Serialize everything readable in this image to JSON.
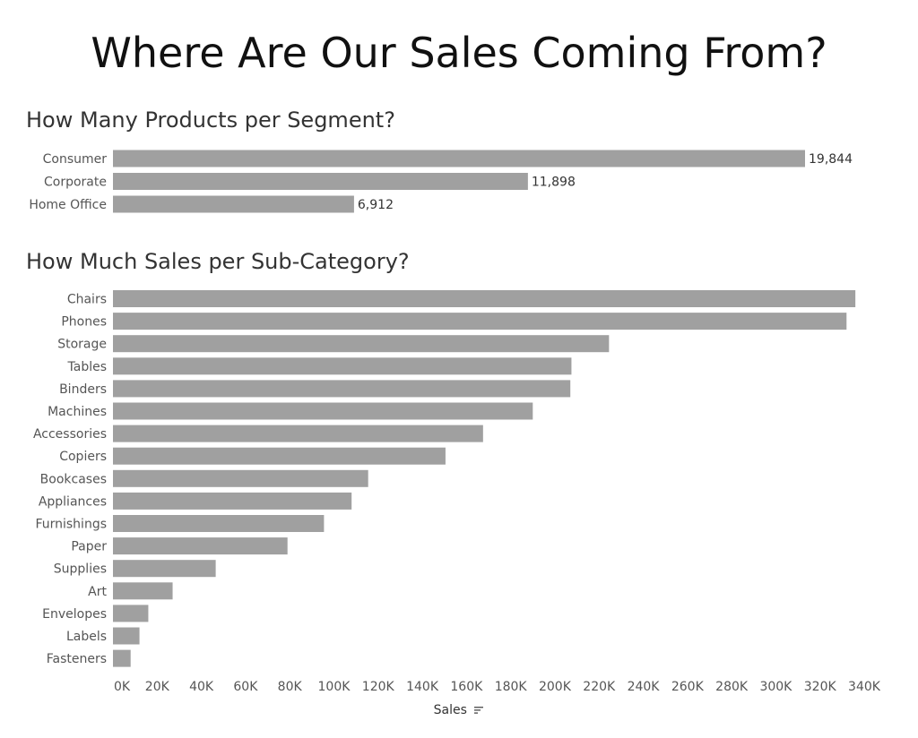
{
  "title": "Where Are Our Sales Coming From?",
  "bar_color": "#a0a0a0",
  "chart_data": [
    {
      "type": "bar",
      "orientation": "horizontal",
      "title": "How Many Products per Segment?",
      "categories": [
        "Consumer",
        "Corporate",
        "Home Office"
      ],
      "values": [
        19844,
        11898,
        6912
      ],
      "data_labels": [
        "19,844",
        "11,898",
        "6,912"
      ],
      "xlim": [
        0,
        20500
      ],
      "axis_shown": false
    },
    {
      "type": "bar",
      "orientation": "horizontal",
      "title": "How Much Sales per Sub-Category?",
      "categories": [
        "Chairs",
        "Phones",
        "Storage",
        "Tables",
        "Binders",
        "Machines",
        "Accessories",
        "Copiers",
        "Bookcases",
        "Appliances",
        "Furnishings",
        "Paper",
        "Supplies",
        "Art",
        "Envelopes",
        "Labels",
        "Fasteners"
      ],
      "values": [
        336000,
        332000,
        224500,
        207500,
        207000,
        190000,
        167500,
        150500,
        115500,
        108000,
        95500,
        79000,
        46500,
        27000,
        16000,
        12000,
        8000
      ],
      "xlabel": "Sales",
      "xlabel_icon": "sort-descending-icon",
      "xticks": [
        0,
        20000,
        40000,
        60000,
        80000,
        100000,
        120000,
        140000,
        160000,
        180000,
        200000,
        220000,
        240000,
        260000,
        280000,
        300000,
        320000,
        340000
      ],
      "xtick_labels": [
        "0K",
        "20K",
        "40K",
        "60K",
        "80K",
        "100K",
        "120K",
        "140K",
        "160K",
        "180K",
        "200K",
        "220K",
        "240K",
        "260K",
        "280K",
        "300K",
        "320K",
        "340K"
      ],
      "xlim": [
        0,
        340000
      ],
      "grid": false
    }
  ]
}
